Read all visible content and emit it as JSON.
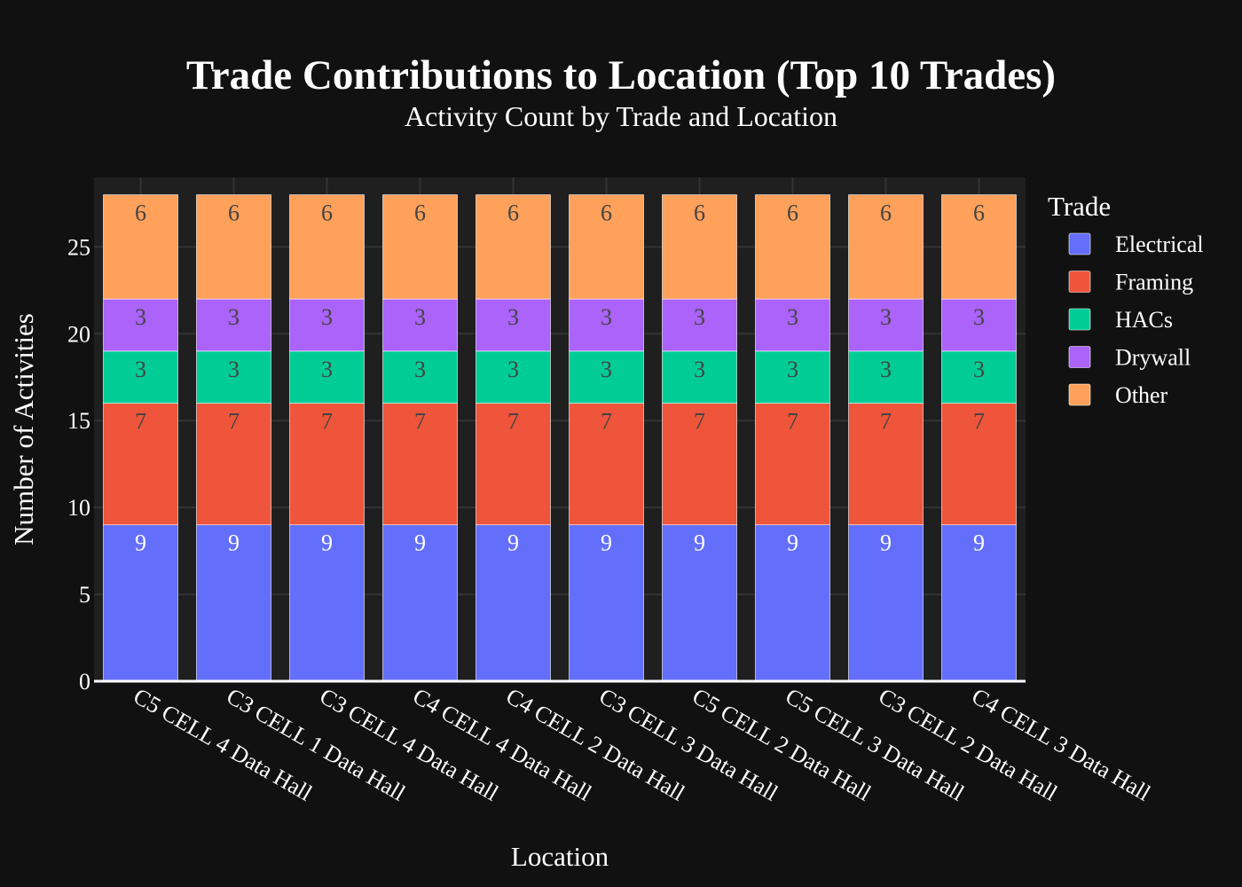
{
  "chart_data": {
    "type": "bar",
    "stacked": true,
    "title": "Trade Contributions to Location (Top 10 Trades)",
    "subtitle": "Activity Count by Trade and Location",
    "xlabel": "Location",
    "ylabel": "Number of Activities",
    "ylim": [
      0,
      29
    ],
    "yticks": [
      0,
      5,
      10,
      15,
      20,
      25
    ],
    "grid": true,
    "legend_title": "Trade",
    "legend_position": "right",
    "categories": [
      "C5 CELL 4 Data Hall",
      "C3 CELL 1 Data Hall",
      "C3 CELL 4 Data Hall",
      "C4 CELL 4 Data Hall",
      "C4 CELL 2 Data Hall",
      "C3 CELL 3 Data Hall",
      "C5 CELL 2 Data Hall",
      "C5 CELL 3 Data Hall",
      "C3 CELL 2 Data Hall",
      "C4 CELL 3 Data Hall"
    ],
    "series": [
      {
        "name": "Electrical",
        "color": "#636efa",
        "label_color": "#ffffff",
        "values": [
          9,
          9,
          9,
          9,
          9,
          9,
          9,
          9,
          9,
          9
        ]
      },
      {
        "name": "Framing",
        "color": "#ef553b",
        "label_color": "#444444",
        "values": [
          7,
          7,
          7,
          7,
          7,
          7,
          7,
          7,
          7,
          7
        ]
      },
      {
        "name": "HACs",
        "color": "#00cc96",
        "label_color": "#444444",
        "values": [
          3,
          3,
          3,
          3,
          3,
          3,
          3,
          3,
          3,
          3
        ]
      },
      {
        "name": "Drywall",
        "color": "#ab63fa",
        "label_color": "#444444",
        "values": [
          3,
          3,
          3,
          3,
          3,
          3,
          3,
          3,
          3,
          3
        ]
      },
      {
        "name": "Other",
        "color": "#ffa15a",
        "label_color": "#444444",
        "values": [
          6,
          6,
          6,
          6,
          6,
          6,
          6,
          6,
          6,
          6
        ]
      }
    ],
    "colors": {
      "background": "#111111",
      "plot_background": "#1f1f1f",
      "grid": "#333333",
      "text": "#ffffff"
    }
  }
}
